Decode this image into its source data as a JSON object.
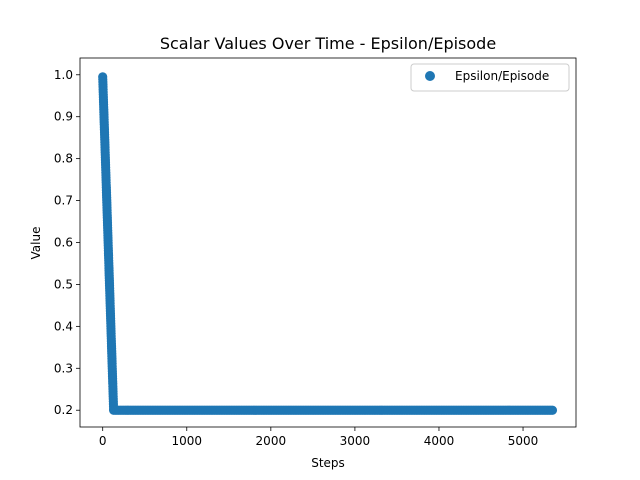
{
  "chart_data": {
    "type": "scatter",
    "title": "Scalar Values Over Time - Epsilon/Episode",
    "xlabel": "Steps",
    "ylabel": "Value",
    "xlim": [
      -270,
      5630
    ],
    "ylim": [
      0.16,
      1.04
    ],
    "xticks": [
      0,
      1000,
      2000,
      3000,
      4000,
      5000
    ],
    "yticks": [
      0.2,
      0.3,
      0.4,
      0.5,
      0.6,
      0.7,
      0.8,
      0.9,
      1.0
    ],
    "xtick_labels": [
      "0",
      "1000",
      "2000",
      "3000",
      "4000",
      "5000"
    ],
    "ytick_labels": [
      "0.2",
      "0.3",
      "0.4",
      "0.5",
      "0.6",
      "0.7",
      "0.8",
      "0.9",
      "1.0"
    ],
    "legend": {
      "placement": "top-right",
      "entries": [
        "Epsilon/Episode"
      ]
    },
    "grid": false,
    "color": "#1f77b4",
    "series": [
      {
        "name": "Epsilon/Episode",
        "decay": {
          "x_start": 0,
          "x_end": 130,
          "y_start": 0.995,
          "y_end": 0.2
        },
        "plateau": {
          "x_start": 130,
          "x_end": 5360,
          "y": 0.2
        }
      }
    ]
  }
}
